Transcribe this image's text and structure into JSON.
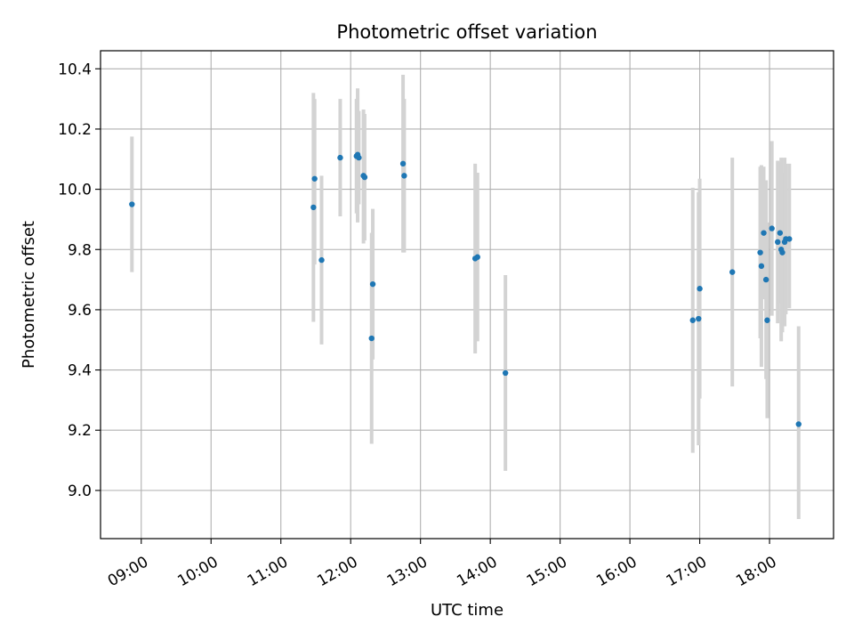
{
  "chart_data": {
    "type": "scatter",
    "title": "Photometric offset variation",
    "xlabel": "UTC time",
    "ylabel": "Photometric offset",
    "x_ticks": [
      "09:00",
      "10:00",
      "11:00",
      "12:00",
      "13:00",
      "14:00",
      "15:00",
      "16:00",
      "17:00",
      "18:00"
    ],
    "x_tick_hours": [
      9,
      10,
      11,
      12,
      13,
      14,
      15,
      16,
      17,
      18
    ],
    "y_ticks": [
      "9.0",
      "9.2",
      "9.4",
      "9.6",
      "9.8",
      "10.0",
      "10.2",
      "10.4"
    ],
    "y_tick_values": [
      9.0,
      9.2,
      9.4,
      9.6,
      9.8,
      10.0,
      10.2,
      10.4
    ],
    "xlim": [
      "08:25",
      "18:55"
    ],
    "ylim": [
      8.84,
      10.46
    ],
    "grid": true,
    "marker_color": "#1f77b4",
    "errorbar_color": "#d3d3d3",
    "series": [
      {
        "points": [
          {
            "t": "08:52",
            "y": 9.95,
            "lo": 9.725,
            "hi": 10.175
          },
          {
            "t": "11:28",
            "y": 9.94,
            "lo": 9.56,
            "hi": 10.32
          },
          {
            "t": "11:29",
            "y": 10.035,
            "lo": 9.75,
            "hi": 10.3
          },
          {
            "t": "11:35",
            "y": 9.765,
            "lo": 9.485,
            "hi": 10.045
          },
          {
            "t": "11:51",
            "y": 10.105,
            "lo": 9.91,
            "hi": 10.3
          },
          {
            "t": "12:05",
            "y": 10.11,
            "lo": 9.92,
            "hi": 10.3
          },
          {
            "t": "12:06",
            "y": 10.115,
            "lo": 9.89,
            "hi": 10.335
          },
          {
            "t": "12:07",
            "y": 10.105,
            "lo": 9.95,
            "hi": 10.26
          },
          {
            "t": "12:11",
            "y": 10.045,
            "lo": 9.82,
            "hi": 10.265
          },
          {
            "t": "12:12",
            "y": 10.04,
            "lo": 9.83,
            "hi": 10.25
          },
          {
            "t": "12:18",
            "y": 9.505,
            "lo": 9.155,
            "hi": 9.855
          },
          {
            "t": "12:19",
            "y": 9.685,
            "lo": 9.435,
            "hi": 9.935
          },
          {
            "t": "12:45",
            "y": 10.085,
            "lo": 9.79,
            "hi": 10.38
          },
          {
            "t": "12:46",
            "y": 10.045,
            "lo": 9.79,
            "hi": 10.3
          },
          {
            "t": "13:47",
            "y": 9.77,
            "lo": 9.455,
            "hi": 10.085
          },
          {
            "t": "13:49",
            "y": 9.775,
            "lo": 9.495,
            "hi": 10.055
          },
          {
            "t": "14:13",
            "y": 9.39,
            "lo": 9.065,
            "hi": 9.715
          },
          {
            "t": "16:54",
            "y": 9.565,
            "lo": 9.125,
            "hi": 10.005
          },
          {
            "t": "16:59",
            "y": 9.57,
            "lo": 9.15,
            "hi": 9.99
          },
          {
            "t": "17:00",
            "y": 9.67,
            "lo": 9.305,
            "hi": 10.035
          },
          {
            "t": "17:28",
            "y": 9.725,
            "lo": 9.345,
            "hi": 10.105
          },
          {
            "t": "17:52",
            "y": 9.79,
            "lo": 9.505,
            "hi": 10.075
          },
          {
            "t": "17:53",
            "y": 9.745,
            "lo": 9.41,
            "hi": 10.08
          },
          {
            "t": "17:55",
            "y": 9.855,
            "lo": 9.635,
            "hi": 10.075
          },
          {
            "t": "17:57",
            "y": 9.7,
            "lo": 9.37,
            "hi": 10.03
          },
          {
            "t": "17:58",
            "y": 9.565,
            "lo": 9.24,
            "hi": 9.89
          },
          {
            "t": "18:02",
            "y": 9.87,
            "lo": 9.58,
            "hi": 10.16
          },
          {
            "t": "18:07",
            "y": 9.825,
            "lo": 9.555,
            "hi": 10.095
          },
          {
            "t": "18:09",
            "y": 9.855,
            "lo": 9.62,
            "hi": 10.09
          },
          {
            "t": "18:10",
            "y": 9.8,
            "lo": 9.495,
            "hi": 10.105
          },
          {
            "t": "18:11",
            "y": 9.79,
            "lo": 9.525,
            "hi": 10.055
          },
          {
            "t": "18:13",
            "y": 9.825,
            "lo": 9.545,
            "hi": 10.105
          },
          {
            "t": "18:14",
            "y": 9.835,
            "lo": 9.585,
            "hi": 10.085
          },
          {
            "t": "18:17",
            "y": 9.835,
            "lo": 9.605,
            "hi": 10.085
          },
          {
            "t": "18:25",
            "y": 9.22,
            "lo": 8.905,
            "hi": 9.545
          }
        ]
      }
    ]
  }
}
